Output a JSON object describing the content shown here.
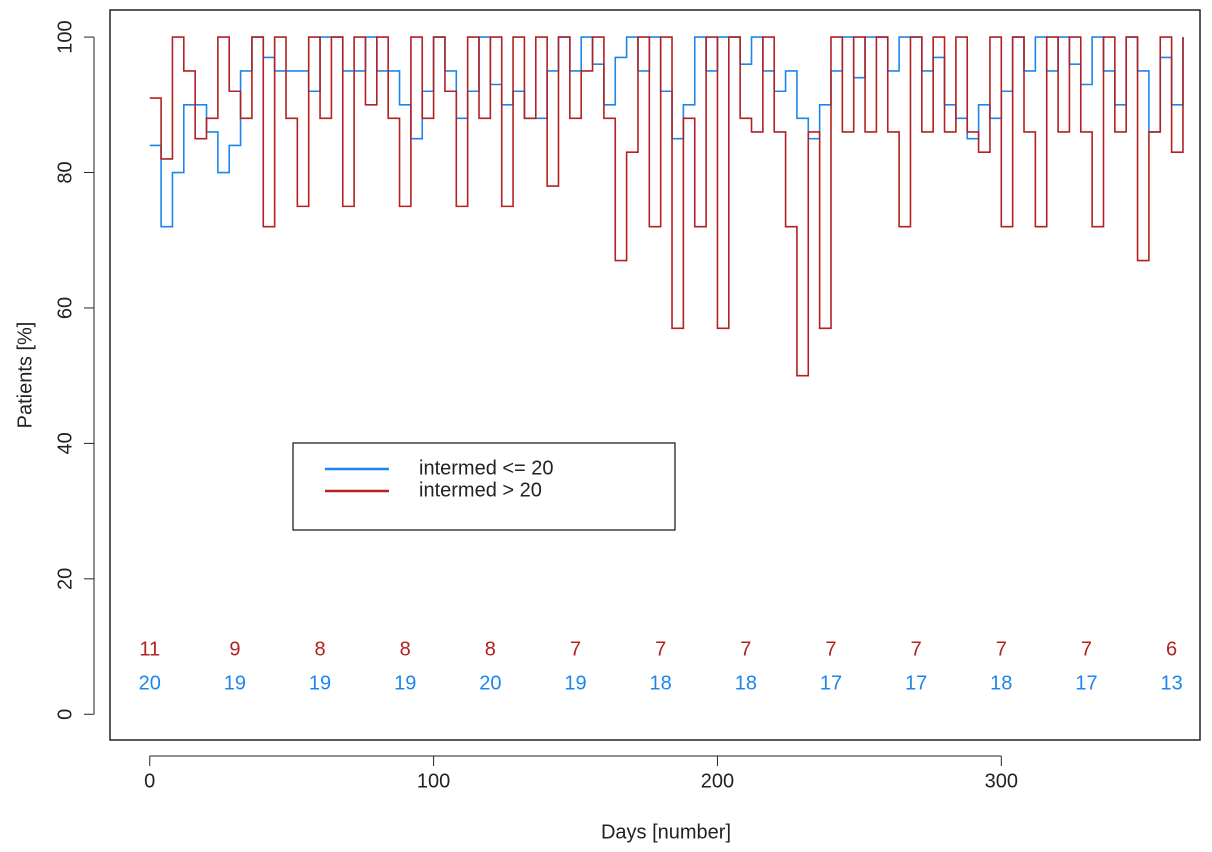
{
  "chart_data": {
    "type": "step",
    "x_label": "Days [number]",
    "y_label": "Patients [%]",
    "xlim": [
      -14,
      370
    ],
    "ylim": [
      -3.8,
      104
    ],
    "xticks": [
      0,
      100,
      200,
      300
    ],
    "yticks": [
      0,
      20,
      40,
      60,
      80,
      100
    ],
    "legend": "lower-left-center",
    "x": [
      0,
      4,
      8,
      12,
      16,
      20,
      24,
      28,
      32,
      36,
      40,
      44,
      48,
      52,
      56,
      60,
      64,
      68,
      72,
      76,
      80,
      84,
      88,
      92,
      96,
      100,
      104,
      108,
      112,
      116,
      120,
      124,
      128,
      132,
      136,
      140,
      144,
      148,
      152,
      156,
      160,
      164,
      168,
      172,
      176,
      180,
      184,
      188,
      192,
      196,
      200,
      204,
      208,
      212,
      216,
      220,
      224,
      228,
      232,
      236,
      240,
      244,
      248,
      252,
      256,
      260,
      264,
      268,
      272,
      276,
      280,
      284,
      288,
      292,
      296,
      300,
      304,
      308,
      312,
      316,
      320,
      324,
      328,
      332,
      336,
      340,
      344,
      348,
      352,
      356,
      360,
      364
    ],
    "series": [
      {
        "name": "intermed <= 20",
        "color": "#1c86ee",
        "values": [
          84,
          72,
          80,
          90,
          90,
          86,
          80,
          84,
          95,
          100,
          97,
          95,
          95,
          95,
          92,
          100,
          100,
          95,
          95,
          100,
          95,
          95,
          90,
          85,
          92,
          100,
          95,
          88,
          92,
          100,
          93,
          90,
          92,
          88,
          88,
          95,
          100,
          95,
          100,
          96,
          90,
          97,
          100,
          95,
          100,
          92,
          85,
          90,
          100,
          95,
          100,
          100,
          96,
          100,
          95,
          92,
          95,
          88,
          85,
          90,
          95,
          100,
          94,
          100,
          100,
          95,
          100,
          100,
          95,
          97,
          90,
          88,
          85,
          90,
          88,
          92,
          100,
          95,
          100,
          95,
          100,
          96,
          93,
          100,
          95,
          90,
          100,
          95,
          86,
          97,
          90,
          100
        ]
      },
      {
        "name": "intermed > 20",
        "color": "#b22222",
        "values": [
          91,
          82,
          100,
          95,
          85,
          88,
          100,
          92,
          88,
          100,
          72,
          100,
          88,
          75,
          100,
          88,
          100,
          75,
          100,
          90,
          100,
          88,
          75,
          100,
          88,
          100,
          92,
          75,
          100,
          88,
          100,
          75,
          100,
          88,
          100,
          78,
          100,
          88,
          95,
          100,
          88,
          67,
          83,
          100,
          72,
          100,
          57,
          88,
          72,
          100,
          57,
          100,
          88,
          86,
          100,
          86,
          72,
          50,
          86,
          57,
          100,
          86,
          100,
          86,
          100,
          86,
          72,
          100,
          86,
          100,
          86,
          100,
          86,
          83,
          100,
          72,
          100,
          86,
          72,
          100,
          86,
          100,
          86,
          72,
          100,
          86,
          100,
          67,
          86,
          100,
          83,
          100
        ]
      }
    ],
    "risk_x": [
      0,
      30,
      60,
      90,
      120,
      150,
      180,
      210,
      240,
      270,
      300,
      330,
      360
    ],
    "risk_rows": [
      {
        "color": "#b22222",
        "values": [
          11,
          9,
          8,
          8,
          8,
          7,
          7,
          7,
          7,
          7,
          7,
          7,
          6
        ]
      },
      {
        "color": "#1c86ee",
        "values": [
          20,
          19,
          19,
          19,
          20,
          19,
          18,
          18,
          17,
          17,
          18,
          17,
          13
        ]
      }
    ]
  }
}
